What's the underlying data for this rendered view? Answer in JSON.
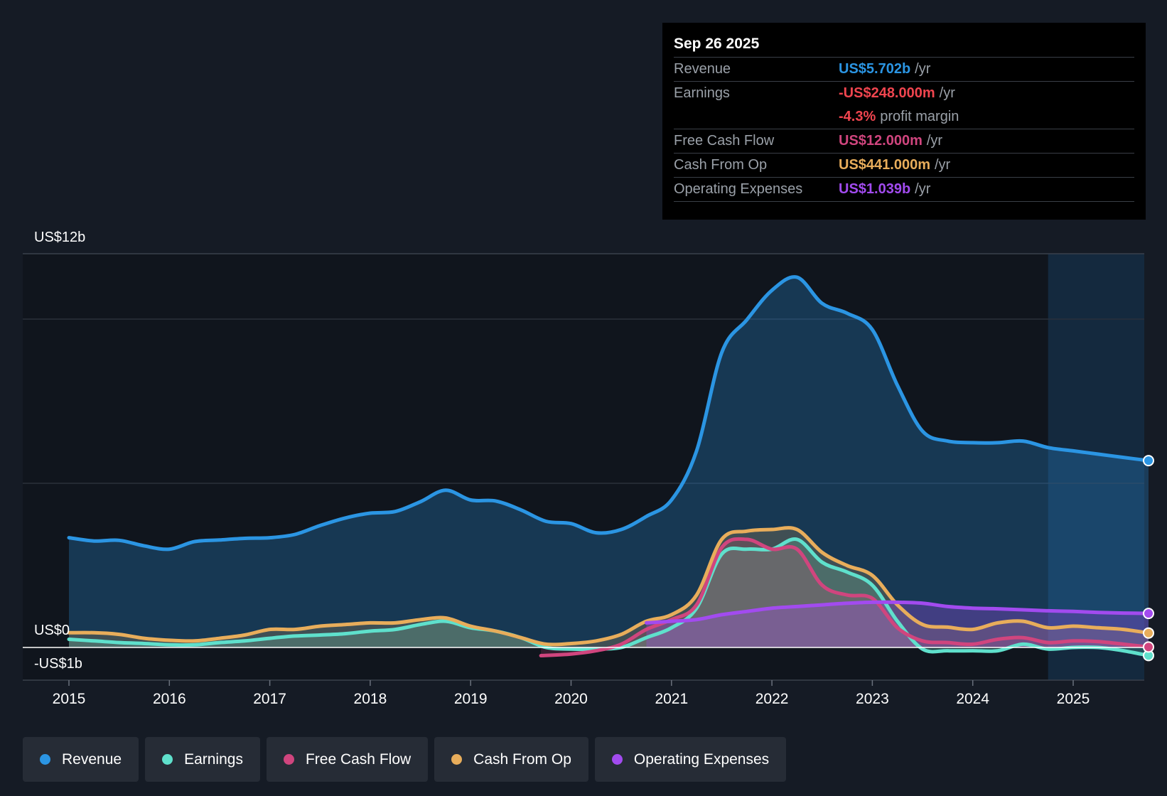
{
  "colors": {
    "revenue": "#2b95e3",
    "earnings": "#5fe0cc",
    "free_cash_flow": "#d0457e",
    "cash_from_op": "#e8ad5b",
    "operating_expenses": "#a24bef",
    "negative": "#f0454f"
  },
  "tooltip": {
    "date": "Sep 26 2025",
    "rows": [
      {
        "label": "Revenue",
        "value": "US$5.702b",
        "unit": "/yr"
      },
      {
        "label": "Earnings",
        "value": "-US$248.000m",
        "unit": "/yr"
      },
      {
        "label": "",
        "value": "-4.3%",
        "unit": "profit margin"
      },
      {
        "label": "Free Cash Flow",
        "value": "US$12.000m",
        "unit": "/yr"
      },
      {
        "label": "Cash From Op",
        "value": "US$441.000m",
        "unit": "/yr"
      },
      {
        "label": "Operating Expenses",
        "value": "US$1.039b",
        "unit": "/yr"
      }
    ]
  },
  "legend": [
    {
      "label": "Revenue",
      "color": "#2b95e3"
    },
    {
      "label": "Earnings",
      "color": "#5fe0cc"
    },
    {
      "label": "Free Cash Flow",
      "color": "#d0457e"
    },
    {
      "label": "Cash From Op",
      "color": "#e8ad5b"
    },
    {
      "label": "Operating Expenses",
      "color": "#a24bef"
    }
  ],
  "chart_data": {
    "type": "line",
    "title": "",
    "xlabel": "",
    "ylabel": "",
    "x_ticks": [
      "2015",
      "2016",
      "2017",
      "2018",
      "2019",
      "2020",
      "2021",
      "2022",
      "2023",
      "2024",
      "2025"
    ],
    "y_labels": {
      "top": "US$12b",
      "zero": "US$0",
      "bottom": "-US$1b"
    },
    "ylim": [
      -1,
      12
    ],
    "xlim": [
      2014.55,
      2025.75
    ],
    "grid": true,
    "forecast_shade_from": 2024.75,
    "series": [
      {
        "name": "Revenue",
        "key": "revenue",
        "x": [
          2015.0,
          2015.25,
          2015.5,
          2015.75,
          2016.0,
          2016.25,
          2016.5,
          2016.75,
          2017.0,
          2017.25,
          2017.5,
          2017.75,
          2018.0,
          2018.25,
          2018.5,
          2018.75,
          2019.0,
          2019.25,
          2019.5,
          2019.75,
          2020.0,
          2020.25,
          2020.5,
          2020.75,
          2021.0,
          2021.25,
          2021.5,
          2021.75,
          2022.0,
          2022.25,
          2022.5,
          2022.75,
          2023.0,
          2023.25,
          2023.5,
          2023.75,
          2024.0,
          2024.25,
          2024.5,
          2024.75,
          2025.0,
          2025.25,
          2025.5,
          2025.75
        ],
        "y": [
          3.35,
          3.25,
          3.27,
          3.1,
          3.0,
          3.23,
          3.28,
          3.33,
          3.35,
          3.45,
          3.72,
          3.95,
          4.1,
          4.15,
          4.45,
          4.8,
          4.5,
          4.47,
          4.2,
          3.85,
          3.78,
          3.5,
          3.6,
          4.0,
          4.5,
          6.0,
          9.0,
          10.0,
          10.9,
          11.3,
          10.5,
          10.2,
          9.7,
          8.0,
          6.6,
          6.3,
          6.25,
          6.25,
          6.3,
          6.1,
          6.0,
          5.9,
          5.8,
          5.702
        ]
      },
      {
        "name": "Earnings",
        "key": "earnings",
        "x": [
          2015.0,
          2015.25,
          2015.5,
          2015.75,
          2016.0,
          2016.25,
          2016.5,
          2016.75,
          2017.0,
          2017.25,
          2017.5,
          2017.75,
          2018.0,
          2018.25,
          2018.5,
          2018.75,
          2019.0,
          2019.25,
          2019.5,
          2019.75,
          2020.0,
          2020.25,
          2020.5,
          2020.75,
          2021.0,
          2021.25,
          2021.5,
          2021.75,
          2022.0,
          2022.25,
          2022.5,
          2022.75,
          2023.0,
          2023.25,
          2023.5,
          2023.75,
          2024.0,
          2024.25,
          2024.5,
          2024.75,
          2025.0,
          2025.25,
          2025.5,
          2025.75
        ],
        "y": [
          0.25,
          0.2,
          0.15,
          0.12,
          0.08,
          0.08,
          0.15,
          0.2,
          0.28,
          0.35,
          0.38,
          0.42,
          0.5,
          0.55,
          0.7,
          0.8,
          0.6,
          0.5,
          0.3,
          0.0,
          -0.05,
          -0.05,
          0.0,
          0.3,
          0.6,
          1.2,
          2.85,
          3.0,
          3.0,
          3.3,
          2.6,
          2.3,
          1.9,
          0.8,
          -0.05,
          -0.1,
          -0.1,
          -0.1,
          0.1,
          -0.05,
          0.0,
          0.0,
          -0.1,
          -0.248
        ]
      },
      {
        "name": "Free Cash Flow",
        "key": "free_cash_flow",
        "x": [
          2019.7,
          2020.0,
          2020.25,
          2020.5,
          2020.75,
          2021.0,
          2021.25,
          2021.5,
          2021.75,
          2022.0,
          2022.25,
          2022.5,
          2022.75,
          2023.0,
          2023.25,
          2023.5,
          2023.75,
          2024.0,
          2024.25,
          2024.5,
          2024.75,
          2025.0,
          2025.25,
          2025.5,
          2025.75
        ],
        "y": [
          -0.25,
          -0.2,
          -0.1,
          0.1,
          0.55,
          0.85,
          1.3,
          3.05,
          3.3,
          3.0,
          3.0,
          1.9,
          1.6,
          1.5,
          0.6,
          0.2,
          0.15,
          0.1,
          0.25,
          0.3,
          0.15,
          0.2,
          0.18,
          0.1,
          0.012
        ]
      },
      {
        "name": "Cash From Op",
        "key": "cash_from_op",
        "x": [
          2015.0,
          2015.25,
          2015.5,
          2015.75,
          2016.0,
          2016.25,
          2016.5,
          2016.75,
          2017.0,
          2017.25,
          2017.5,
          2017.75,
          2018.0,
          2018.25,
          2018.5,
          2018.75,
          2019.0,
          2019.25,
          2019.5,
          2019.75,
          2020.0,
          2020.25,
          2020.5,
          2020.75,
          2021.0,
          2021.25,
          2021.5,
          2021.75,
          2022.0,
          2022.25,
          2022.5,
          2022.75,
          2023.0,
          2023.25,
          2023.5,
          2023.75,
          2024.0,
          2024.25,
          2024.5,
          2024.75,
          2025.0,
          2025.25,
          2025.5,
          2025.75
        ],
        "y": [
          0.45,
          0.45,
          0.4,
          0.28,
          0.22,
          0.2,
          0.28,
          0.38,
          0.55,
          0.55,
          0.65,
          0.7,
          0.75,
          0.75,
          0.85,
          0.9,
          0.65,
          0.5,
          0.3,
          0.1,
          0.12,
          0.2,
          0.4,
          0.8,
          1.0,
          1.6,
          3.3,
          3.55,
          3.6,
          3.6,
          2.9,
          2.5,
          2.2,
          1.3,
          0.7,
          0.62,
          0.55,
          0.75,
          0.8,
          0.6,
          0.65,
          0.6,
          0.55,
          0.441
        ]
      },
      {
        "name": "Operating Expenses",
        "key": "operating_expenses",
        "x": [
          2020.75,
          2021.0,
          2021.25,
          2021.5,
          2021.75,
          2022.0,
          2022.25,
          2022.5,
          2022.75,
          2023.0,
          2023.25,
          2023.5,
          2023.75,
          2024.0,
          2024.25,
          2024.5,
          2024.75,
          2025.0,
          2025.25,
          2025.5,
          2025.75
        ],
        "y": [
          0.75,
          0.8,
          0.85,
          1.0,
          1.1,
          1.2,
          1.25,
          1.3,
          1.35,
          1.38,
          1.38,
          1.35,
          1.25,
          1.2,
          1.18,
          1.15,
          1.12,
          1.1,
          1.07,
          1.05,
          1.039
        ]
      }
    ]
  }
}
